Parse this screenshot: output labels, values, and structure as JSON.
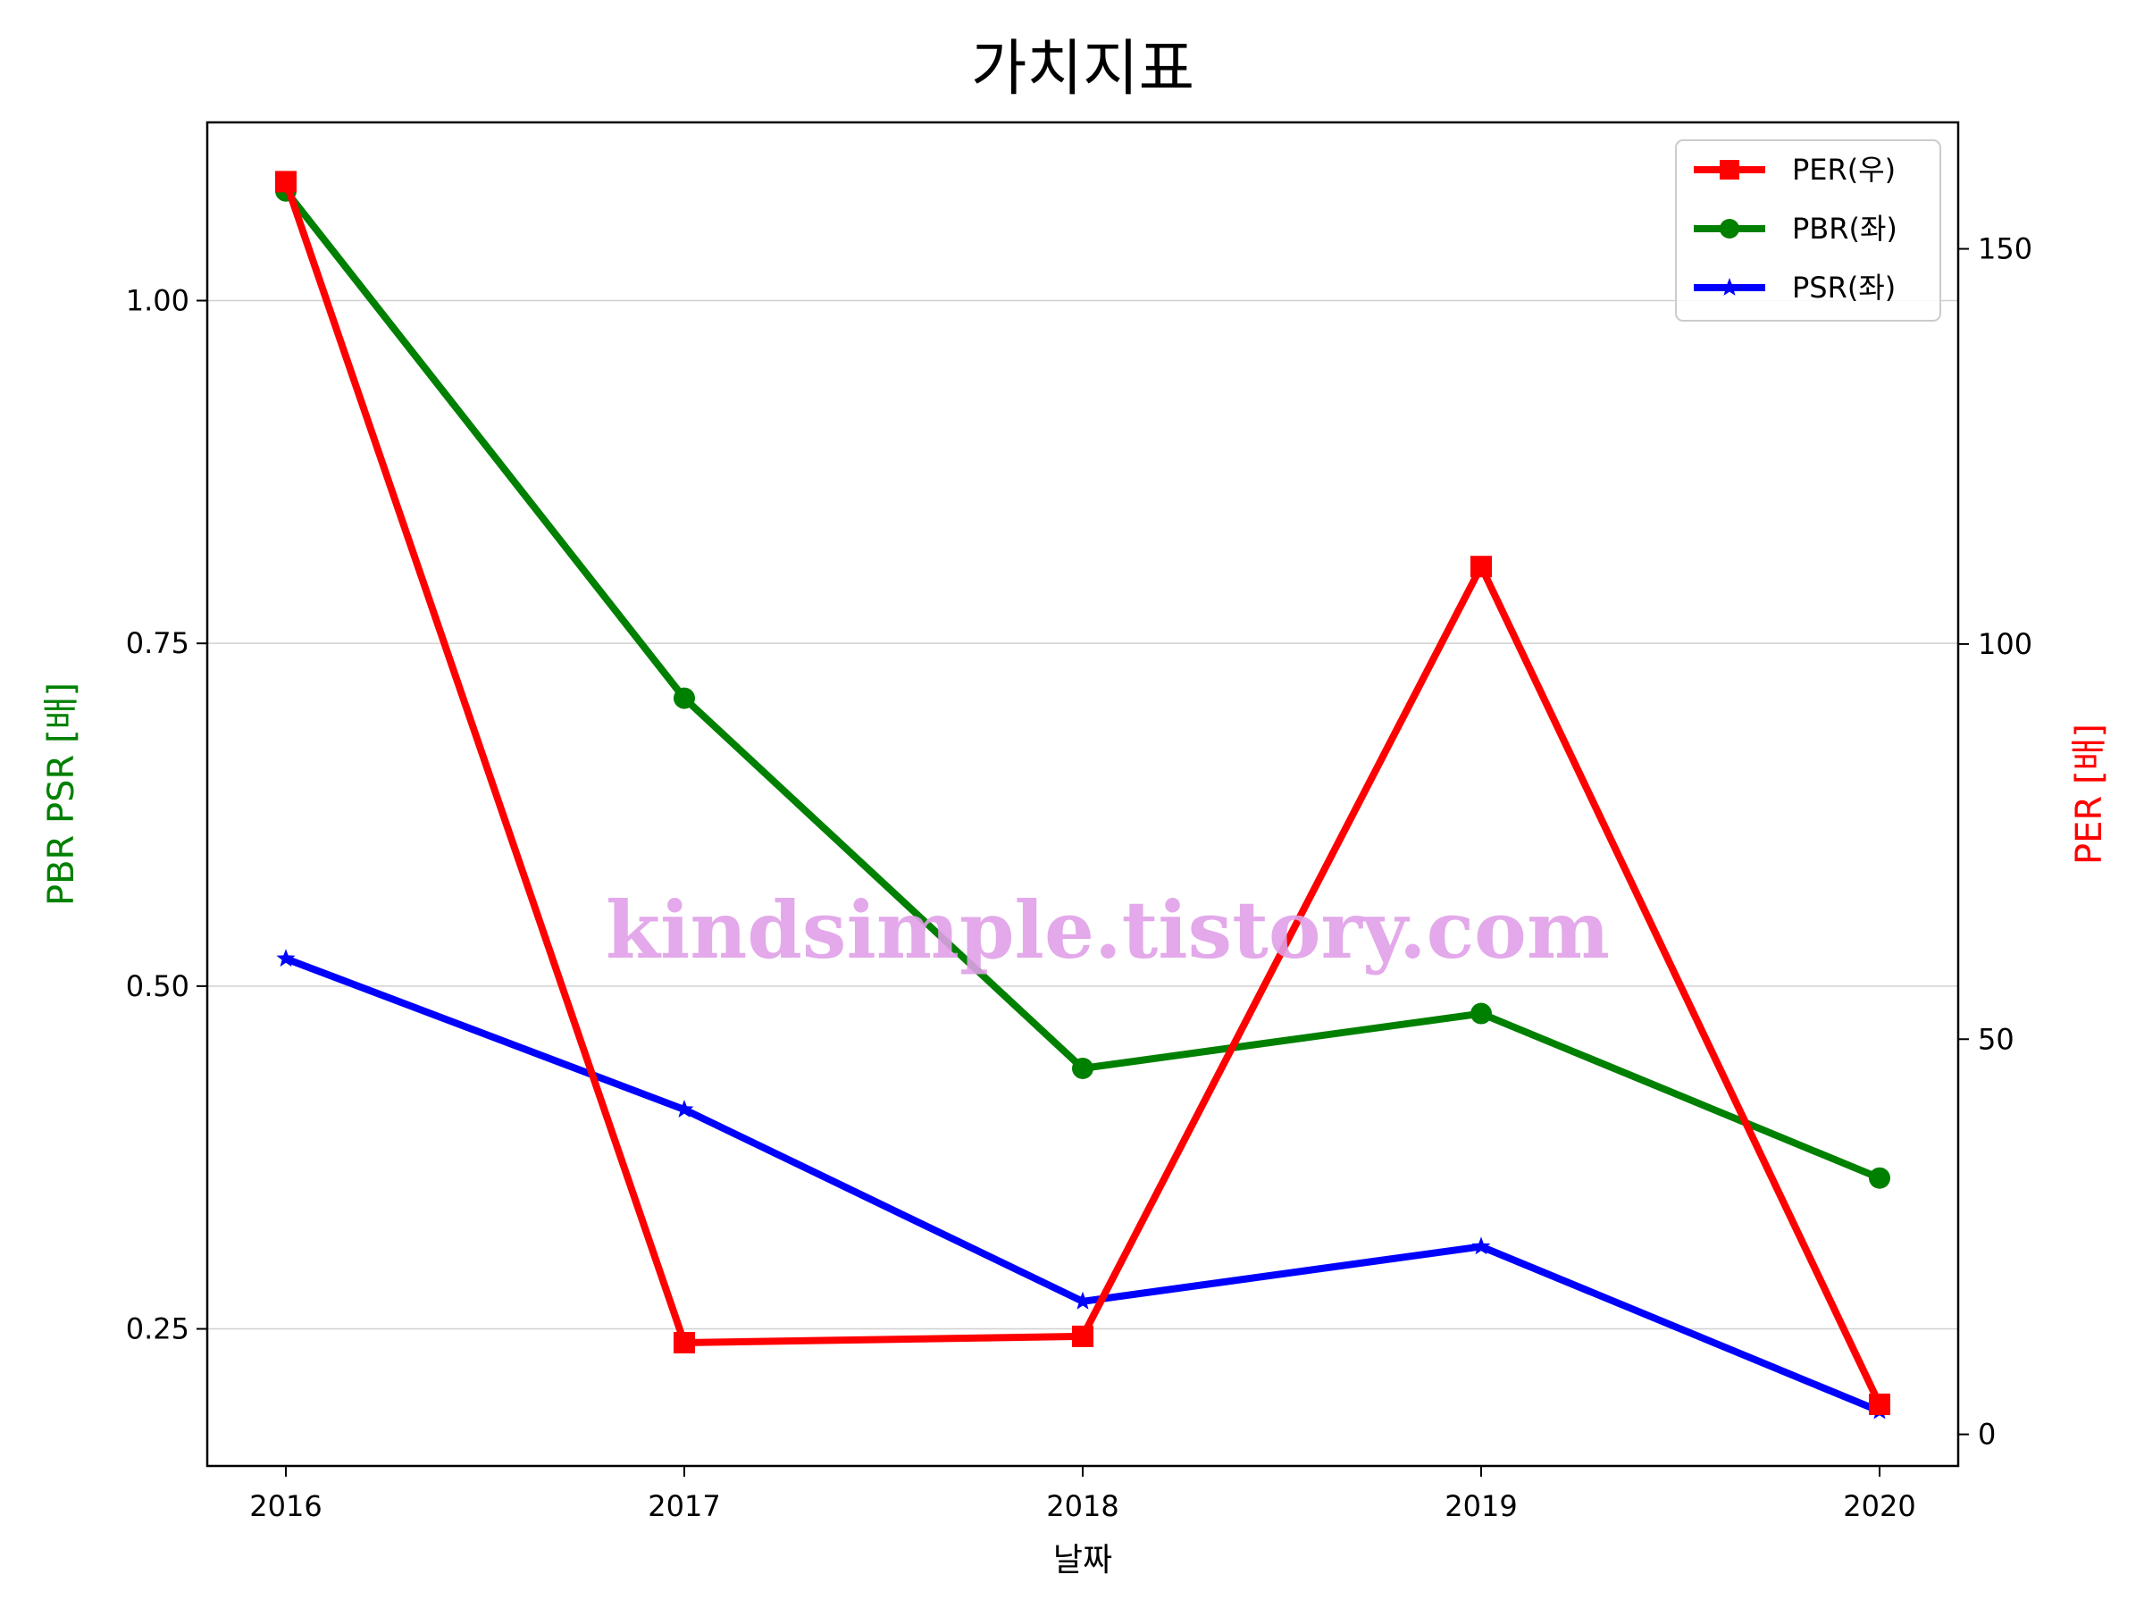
{
  "chart_data": {
    "type": "line",
    "title": "가치지표",
    "xlabel": "날짜",
    "ylabel_left": "PBR PSR [배]",
    "ylabel_right": "PER [배]",
    "categories": [
      "2016",
      "2017",
      "2018",
      "2019",
      "2020"
    ],
    "y_left": {
      "ylim": [
        0.15,
        1.13
      ],
      "ticks": [
        0.25,
        0.5,
        0.75,
        1.0
      ],
      "tick_labels": [
        "0.25",
        "0.50",
        "0.75",
        "1.00"
      ]
    },
    "y_right": {
      "ylim": [
        -4,
        166
      ],
      "ticks": [
        0,
        50,
        100,
        150
      ],
      "tick_labels": [
        "0",
        "50",
        "100",
        "150"
      ]
    },
    "grid": "horizontal-left-axis",
    "legend_position": "top-right",
    "series": [
      {
        "name": "PER(우)",
        "axis": "right",
        "color": "#ff0000",
        "marker": "square",
        "values": [
          158.5,
          11.6,
          12.4,
          109.8,
          3.8
        ]
      },
      {
        "name": "PBR(좌)",
        "axis": "left",
        "color": "#008000",
        "marker": "circle",
        "values": [
          1.08,
          0.71,
          0.44,
          0.48,
          0.36
        ]
      },
      {
        "name": "PSR(좌)",
        "axis": "left",
        "color": "#0000ff",
        "marker": "star",
        "values": [
          0.52,
          0.41,
          0.27,
          0.31,
          0.19
        ]
      }
    ],
    "watermark": "kindsimple.tistory.com",
    "watermark_color": "#e0a0e8"
  }
}
